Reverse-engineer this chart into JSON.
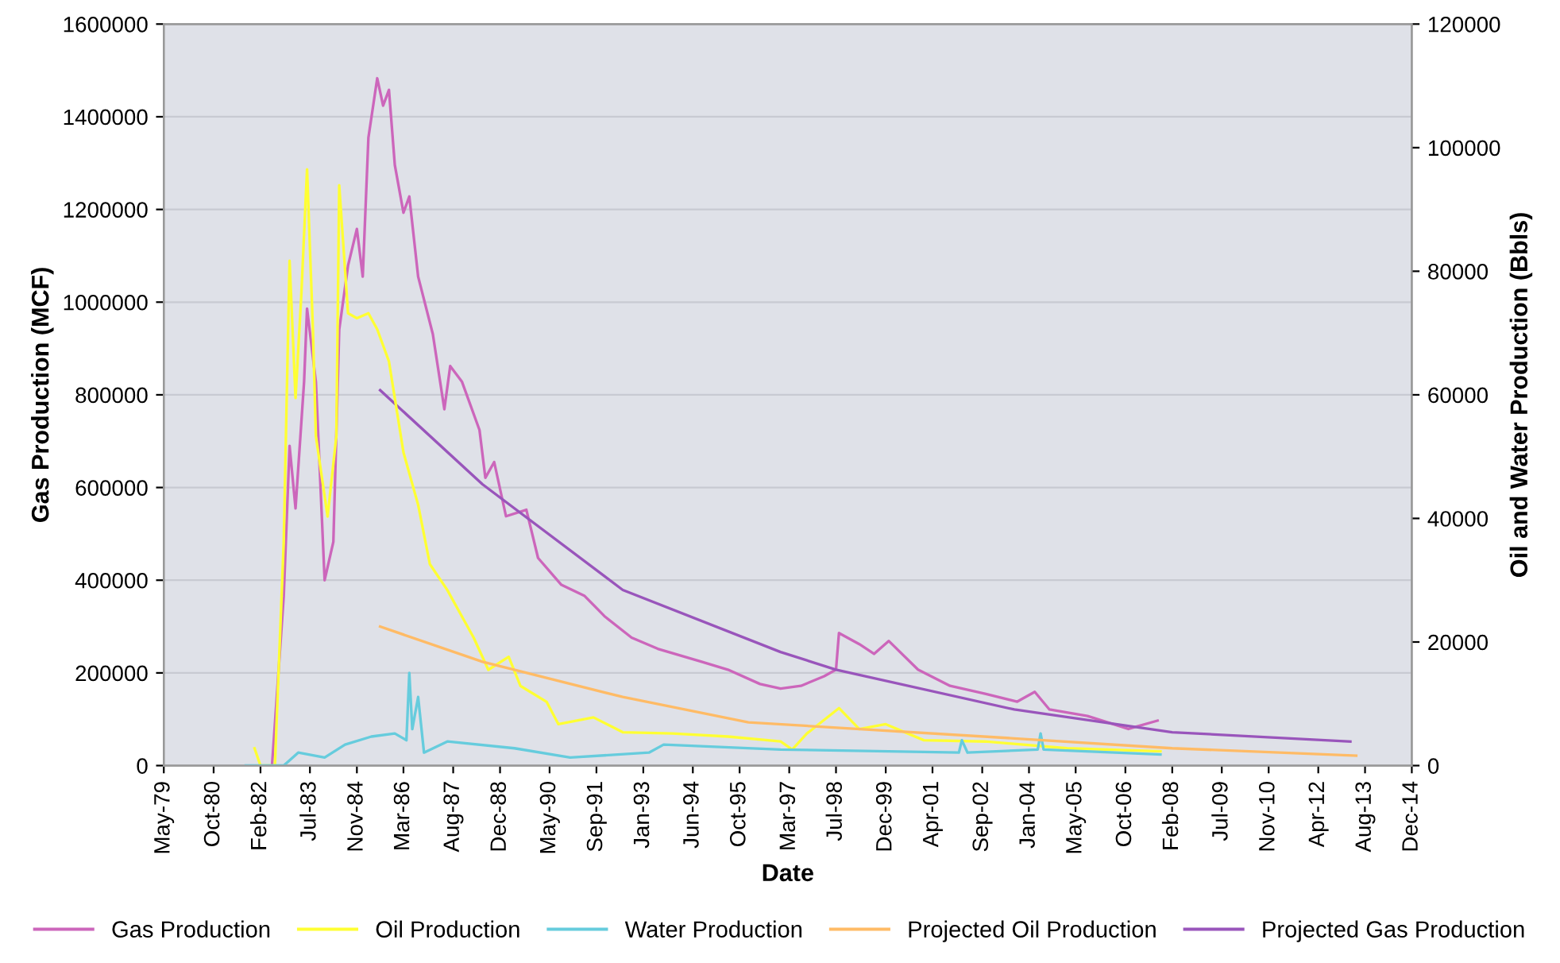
{
  "chart_data": {
    "type": "line",
    "xlabel": "Date",
    "ylabel": "Gas Production (MCF)",
    "y2label": "Oil and Water Production (Bbls)",
    "xlim": [
      "1979-05",
      "2014-12"
    ],
    "xticks": [
      {
        "value": "1979-05",
        "label": "May-79"
      },
      {
        "value": "1980-10",
        "label": "Oct-80"
      },
      {
        "value": "1982-02",
        "label": "Feb-82"
      },
      {
        "value": "1983-07",
        "label": "Jul-83"
      },
      {
        "value": "1984-11",
        "label": "Nov-84"
      },
      {
        "value": "1986-03",
        "label": "Mar-86"
      },
      {
        "value": "1987-08",
        "label": "Aug-87"
      },
      {
        "value": "1988-12",
        "label": "Dec-88"
      },
      {
        "value": "1990-05",
        "label": "May-90"
      },
      {
        "value": "1991-09",
        "label": "Sep-91"
      },
      {
        "value": "1993-01",
        "label": "Jan-93"
      },
      {
        "value": "1994-06",
        "label": "Jun-94"
      },
      {
        "value": "1995-10",
        "label": "Oct-95"
      },
      {
        "value": "1997-03",
        "label": "Mar-97"
      },
      {
        "value": "1998-07",
        "label": "Jul-98"
      },
      {
        "value": "1999-12",
        "label": "Dec-99"
      },
      {
        "value": "2001-04",
        "label": "Apr-01"
      },
      {
        "value": "2002-09",
        "label": "Sep-02"
      },
      {
        "value": "2004-01",
        "label": "Jan-04"
      },
      {
        "value": "2005-05",
        "label": "May-05"
      },
      {
        "value": "2006-10",
        "label": "Oct-06"
      },
      {
        "value": "2008-02",
        "label": "Feb-08"
      },
      {
        "value": "2009-07",
        "label": "Jul-09"
      },
      {
        "value": "2010-11",
        "label": "Nov-10"
      },
      {
        "value": "2012-04",
        "label": "Apr-12"
      },
      {
        "value": "2013-08",
        "label": "Aug-13"
      },
      {
        "value": "2014-12",
        "label": "Dec-14"
      }
    ],
    "ylim": [
      0,
      1600000
    ],
    "yticks": [
      0,
      200000,
      400000,
      600000,
      800000,
      1000000,
      1200000,
      1400000,
      1600000
    ],
    "y2lim": [
      0,
      120000
    ],
    "y2ticks": [
      0,
      20000,
      40000,
      60000,
      80000,
      100000,
      120000
    ],
    "grid": "y",
    "legend": "bottom",
    "series": [
      {
        "name": "Gas Production",
        "color": "#cc66bb",
        "x": [
          "1982-06",
          "1982-10",
          "1982-12",
          "1983-02",
          "1983-05",
          "1983-06",
          "1983-09",
          "1983-12",
          "1984-03",
          "1984-05",
          "1984-08",
          "1984-11",
          "1985-01",
          "1985-03",
          "1985-06",
          "1985-08",
          "1985-10",
          "1985-12",
          "1986-03",
          "1986-05",
          "1986-08",
          "1987-01",
          "1987-05",
          "1987-07",
          "1987-11",
          "1988-05",
          "1988-07",
          "1988-10",
          "1989-02",
          "1989-09",
          "1990-01",
          "1990-09",
          "1991-05",
          "1991-12",
          "1992-09",
          "1993-06",
          "1994-09",
          "1995-06",
          "1996-05",
          "1996-12",
          "1997-07",
          "1998-03",
          "1998-07",
          "1998-08",
          "1999-03",
          "1999-08",
          "2000-01",
          "2000-11",
          "2001-10",
          "2002-10",
          "2003-09",
          "2004-03",
          "2004-08",
          "2005-09",
          "2006-11",
          "2007-09"
        ],
        "values": [
          0,
          365000,
          690000,
          555000,
          828000,
          986000,
          828000,
          400000,
          483000,
          941000,
          1079000,
          1158000,
          1055000,
          1355000,
          1483000,
          1424000,
          1458000,
          1296000,
          1193000,
          1228000,
          1055000,
          931000,
          769000,
          862000,
          828000,
          724000,
          621000,
          655000,
          538000,
          552000,
          448000,
          390000,
          366000,
          321000,
          276000,
          252000,
          224000,
          207000,
          176000,
          166000,
          172000,
          193000,
          207000,
          286000,
          262000,
          241000,
          269000,
          207000,
          172000,
          155000,
          138000,
          159000,
          121000,
          107000,
          79000,
          97000
        ]
      },
      {
        "name": "Oil Production",
        "color": "#ffff33",
        "axis": "y2",
        "x": [
          "1981-12",
          "1982-02",
          "1982-07",
          "1982-10",
          "1982-12",
          "1983-02",
          "1983-04",
          "1983-06",
          "1983-08",
          "1983-09",
          "1984-01",
          "1984-04",
          "1984-05",
          "1984-08",
          "1984-11",
          "1985-03",
          "1985-06",
          "1985-10",
          "1986-03",
          "1986-08",
          "1986-12",
          "1987-06",
          "1988-03",
          "1988-08",
          "1989-03",
          "1989-07",
          "1990-04",
          "1990-08",
          "1991-08",
          "1992-06",
          "1993-11",
          "1995-06",
          "1996-12",
          "1997-04",
          "1997-09",
          "1998-08",
          "1999-03",
          "1999-12",
          "2001-01",
          "2002-10",
          "2005-02",
          "2007-10"
        ],
        "values": [
          2800,
          0,
          0,
          36200,
          81700,
          59500,
          75800,
          96500,
          70600,
          53300,
          40300,
          53300,
          93900,
          73200,
          72400,
          73200,
          70600,
          65400,
          50700,
          42200,
          32600,
          28400,
          20700,
          15500,
          17600,
          12900,
          10300,
          6700,
          7800,
          5400,
          5200,
          4700,
          3900,
          2600,
          5200,
          9300,
          5900,
          6700,
          4100,
          3900,
          2800,
          2300
        ]
      },
      {
        "name": "Water Production",
        "color": "#66ccdd",
        "axis": "y2",
        "x": [
          "1981-09",
          "1982-10",
          "1983-03",
          "1983-12",
          "1984-07",
          "1985-04",
          "1985-12",
          "1986-04",
          "1986-05",
          "1986-06",
          "1986-08",
          "1986-10",
          "1987-06",
          "1989-05",
          "1990-12",
          "1993-03",
          "1993-08",
          "1996-12",
          "2002-01",
          "2002-02",
          "2002-04",
          "2004-04",
          "2004-05",
          "2004-06",
          "2007-10"
        ],
        "values": [
          0,
          0,
          2100,
          1300,
          3400,
          4700,
          5200,
          4100,
          15000,
          5900,
          11100,
          2100,
          3900,
          2800,
          1300,
          2100,
          3400,
          2600,
          2100,
          4100,
          2100,
          2600,
          5200,
          2600,
          1800
        ]
      },
      {
        "name": "Projected Oil Production",
        "color": "#ffbb66",
        "axis": "y2",
        "x": [
          "1985-07",
          "1988-06",
          "1992-06",
          "1996-01",
          "2003-08",
          "2008-02",
          "2013-05"
        ],
        "values": [
          22500,
          16800,
          11100,
          7000,
          4400,
          2800,
          1600
        ]
      },
      {
        "name": "Projected Gas Production",
        "color": "#9955bb",
        "x": [
          "1985-07",
          "1988-06",
          "1992-06",
          "1996-12",
          "1998-07",
          "2003-08",
          "2008-02",
          "2013-03"
        ],
        "values": [
          810000,
          607000,
          379000,
          245000,
          207000,
          121000,
          72000,
          52000
        ]
      }
    ]
  }
}
